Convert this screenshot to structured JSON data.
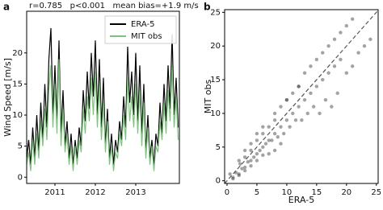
{
  "chart_data": [
    {
      "type": "line",
      "panel_label": "a",
      "annotation": "r=0.785   p<0.001   mean bias=+1.9 m/s",
      "ylabel": "Wind Speed [m/s]",
      "x": [
        2010.3,
        2010.35,
        2010.4,
        2010.45,
        2010.5,
        2010.55,
        2010.6,
        2010.65,
        2010.7,
        2010.75,
        2010.8,
        2010.85,
        2010.9,
        2010.95,
        2011,
        2011.05,
        2011.1,
        2011.15,
        2011.2,
        2011.25,
        2011.3,
        2011.35,
        2011.4,
        2011.45,
        2011.5,
        2011.55,
        2011.6,
        2011.65,
        2011.7,
        2011.75,
        2011.8,
        2011.85,
        2011.9,
        2011.95,
        2012,
        2012.05,
        2012.1,
        2012.15,
        2012.2,
        2012.25,
        2012.3,
        2012.35,
        2012.4,
        2012.45,
        2012.5,
        2012.55,
        2012.6,
        2012.65,
        2012.7,
        2012.75,
        2012.8,
        2012.85,
        2012.9,
        2012.95,
        2013,
        2013.05,
        2013.1,
        2013.15,
        2013.2,
        2013.25,
        2013.3,
        2013.35,
        2013.4,
        2013.45,
        2013.5,
        2013.55,
        2013.6,
        2013.65,
        2013.7,
        2013.75,
        2013.8,
        2013.85,
        2013.9,
        2013.95,
        2014,
        2014.05
      ],
      "series": [
        {
          "name": "ERA-5",
          "color": "#000000",
          "values": [
            3,
            6,
            2,
            8,
            3,
            10,
            4,
            12,
            6,
            15,
            8,
            19,
            24,
            10,
            18,
            9,
            22,
            7,
            14,
            5,
            9,
            3,
            7,
            2,
            6,
            3,
            8,
            5,
            14,
            9,
            17,
            11,
            20,
            13,
            22,
            10,
            19,
            8,
            16,
            5,
            11,
            3,
            7,
            2,
            6,
            4,
            9,
            6,
            13,
            8,
            21,
            12,
            17,
            10,
            20,
            9,
            18,
            7,
            15,
            4,
            10,
            3,
            6,
            2,
            7,
            5,
            12,
            7,
            15,
            9,
            18,
            11,
            23,
            10,
            16,
            8
          ]
        },
        {
          "name": "MIT obs",
          "color": "#7cc47c",
          "values": [
            2,
            4,
            1,
            6,
            2,
            7,
            3,
            9,
            5,
            11,
            6,
            14,
            18,
            8,
            15,
            7,
            19,
            5,
            11,
            4,
            7,
            2,
            5,
            1,
            5,
            2,
            6,
            4,
            11,
            7,
            13,
            9,
            16,
            10,
            17,
            8,
            15,
            6,
            12,
            4,
            9,
            2,
            5,
            1,
            4,
            3,
            7,
            5,
            10,
            6,
            16,
            9,
            13,
            8,
            15,
            7,
            14,
            5,
            12,
            3,
            8,
            2,
            5,
            1,
            5,
            4,
            9,
            6,
            12,
            7,
            14,
            9,
            18,
            8,
            13,
            6
          ]
        }
      ],
      "xlim": [
        2010.3,
        2014.08
      ],
      "xticks": [
        2011,
        2012,
        2013
      ],
      "ylim": [
        -1,
        26.7
      ],
      "yticks": [
        0,
        5,
        10,
        15,
        20
      ],
      "legend": "upper right"
    },
    {
      "type": "scatter",
      "panel_label": "b",
      "xlabel": "ERA-5",
      "ylabel": "MIT obs",
      "color": "#333333",
      "x": [
        1,
        1.5,
        2,
        2.2,
        2.5,
        3,
        3,
        3.5,
        4,
        4,
        4.5,
        5,
        5,
        5.5,
        6,
        6,
        6.5,
        7,
        7,
        7.5,
        8,
        8,
        8.5,
        9,
        9,
        9.5,
        10,
        10,
        10.5,
        11,
        11,
        11.5,
        12,
        12,
        12.5,
        13,
        13,
        13.5,
        14,
        14,
        14.5,
        15,
        15,
        15.5,
        16,
        16,
        16.5,
        17,
        17,
        17.5,
        18,
        18,
        18.5,
        19,
        19,
        20,
        20,
        21,
        21,
        22,
        23,
        24,
        0.5,
        1,
        2,
        3,
        4,
        5,
        6,
        7,
        8,
        2,
        3,
        4,
        6,
        8,
        10,
        12,
        5,
        9
      ],
      "y": [
        0.5,
        1.2,
        1,
        2.5,
        1.8,
        2,
        3.5,
        2.8,
        3,
        4.5,
        3.5,
        4,
        6,
        4.5,
        5,
        7,
        5.5,
        6,
        8,
        6,
        7,
        9,
        6.5,
        8,
        11,
        7,
        9,
        12,
        8,
        10,
        13,
        9,
        11,
        14,
        9,
        12,
        16,
        10,
        13,
        17,
        11,
        14,
        18,
        10,
        15,
        19,
        12,
        16,
        20,
        11,
        17,
        21,
        13,
        18,
        22,
        16,
        23,
        17,
        24,
        19,
        20,
        21,
        1,
        0.3,
        0.8,
        1.5,
        2.2,
        3,
        3.8,
        4,
        4.5,
        3,
        4.5,
        5.5,
        8,
        10,
        12,
        14,
        7,
        5.5
      ],
      "xlim": [
        -0.4,
        25.3
      ],
      "xticks": [
        0,
        5,
        10,
        15,
        20,
        25
      ],
      "ylim": [
        -0.4,
        25.4
      ],
      "yticks": [
        0,
        5,
        10,
        15,
        20,
        25
      ]
    }
  ]
}
